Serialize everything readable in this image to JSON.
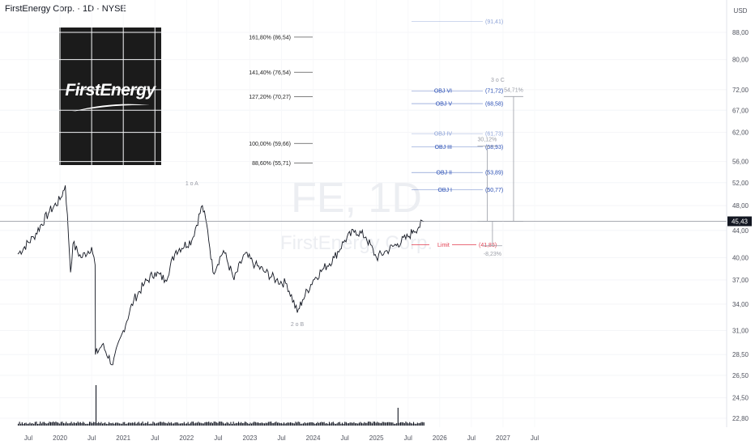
{
  "header": {
    "title": "FirstEnergy Corp. · 1D · NYSE"
  },
  "logo": {
    "text": "FirstEnergy"
  },
  "watermark": {
    "symbol": "FE, 1D",
    "company": "FirstEnergy Corp."
  },
  "chart_data": {
    "type": "line",
    "currency": "USD",
    "y_scale": "log",
    "ylim": [
      22.8,
      95
    ],
    "y_ticks": [
      "88,00",
      "80,00",
      "72,00",
      "67,00",
      "62,00",
      "56,00",
      "52,00",
      "48,00",
      "44,00",
      "40,00",
      "37,00",
      "34,00",
      "31,00",
      "28,50",
      "26,50",
      "24,50",
      "22,80"
    ],
    "x_ticks": [
      "Jul",
      "2020",
      "Jul",
      "2021",
      "Jul",
      "2022",
      "Jul",
      "2023",
      "Jul",
      "2024",
      "Jul",
      "2025",
      "Jul",
      "2026",
      "Jul",
      "2027",
      "Jul"
    ],
    "last_price": {
      "label": "45,43",
      "value": 45.43
    },
    "series": [
      {
        "name": "FE daily close",
        "color": "#131722",
        "x": [
          "2019-05",
          "2019-08",
          "2019-11",
          "2020-01",
          "2020-02",
          "2020-03",
          "2020-03-15",
          "2020-05",
          "2020-07",
          "2020-07-21",
          "2020-07-23",
          "2020-09",
          "2020-11",
          "2021-01",
          "2021-03",
          "2021-05",
          "2021-07",
          "2021-09",
          "2021-11",
          "2022-02",
          "2022-04",
          "2022-05",
          "2022-06",
          "2022-08",
          "2022-10",
          "2022-12",
          "2023-02",
          "2023-04",
          "2023-06",
          "2023-08",
          "2023-10",
          "2023-11",
          "2024-01",
          "2024-03",
          "2024-05",
          "2024-07",
          "2024-09",
          "2024-11",
          "2025-01",
          "2025-03",
          "2025-05",
          "2025-07",
          "2025-08",
          "2025-09",
          "2025-10"
        ],
        "values": [
          40.5,
          43,
          47,
          49,
          51.5,
          38,
          42,
          40,
          41.5,
          39,
          28.5,
          29.5,
          27.5,
          31,
          34.5,
          36.5,
          38,
          37,
          41,
          42.5,
          48,
          44,
          38,
          41,
          37,
          40.5,
          39,
          38,
          37,
          36.5,
          33,
          34.5,
          37,
          38.5,
          40,
          42.5,
          44,
          43,
          40,
          41,
          42,
          43,
          44,
          44.5,
          45.43
        ]
      },
      {
        "name": "Volume",
        "color": "#999999"
      }
    ],
    "fib_levels": [
      {
        "label": "161,80% (86,54)",
        "value": 86.54
      },
      {
        "label": "141,40% (76,54)",
        "value": 76.54
      },
      {
        "label": "127,20% (70,27)",
        "value": 70.27
      },
      {
        "label": "100,00% (59,66)",
        "value": 59.66
      },
      {
        "label": "88,60% (55,71)",
        "value": 55.71
      }
    ],
    "objectives": [
      {
        "label": "",
        "price": "(91,41)",
        "value": 91.41,
        "color": "#8fa4d8"
      },
      {
        "label": "OBJ VI",
        "price": "(71,72)",
        "value": 71.72,
        "color": "#2a4fb5"
      },
      {
        "label": "OBJ V",
        "price": "(68,58)",
        "value": 68.58,
        "color": "#2a4fb5"
      },
      {
        "label": "OBJ IV",
        "price": "(61,73)",
        "value": 61.73,
        "color": "#8fa4d8"
      },
      {
        "label": "OBJ III",
        "price": "(58,93)",
        "value": 58.93,
        "color": "#2a4fb5"
      },
      {
        "label": "OBJ II",
        "price": "(53,89)",
        "value": 53.89,
        "color": "#2a4fb5"
      },
      {
        "label": "OBJ I",
        "price": "(50,77)",
        "value": 50.77,
        "color": "#2a4fb5"
      }
    ],
    "limit": {
      "label": "Limit",
      "price": "(41,85)",
      "value": 41.85,
      "color": "#e23b4e"
    },
    "wave_labels": [
      {
        "text": "1 o A",
        "date": "2022-02",
        "value": 51.5
      },
      {
        "text": "2 o B",
        "date": "2023-10",
        "value": 31.5
      },
      {
        "text": "3 o C",
        "date": "2026-12",
        "value": 74
      }
    ],
    "projections": [
      {
        "label": "30,12%",
        "from": 45.43,
        "to": 59.1,
        "date": "2026-10"
      },
      {
        "label": "54,71%",
        "from": 45.43,
        "to": 70.3,
        "date": "2027-03"
      },
      {
        "label": "-8,23%",
        "from": 45.43,
        "to": 41.7,
        "date": "2026-11"
      }
    ]
  }
}
